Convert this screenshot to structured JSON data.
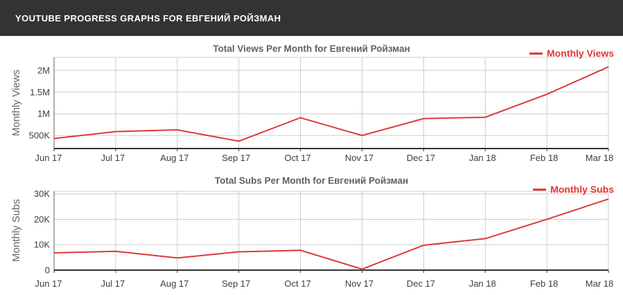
{
  "header": {
    "title": "YOUTUBE PROGRESS GRAPHS FOR ЕВГЕНИЙ РОЙЗМАН"
  },
  "colors": {
    "background": "#ffffff",
    "header_bg": "#333333",
    "header_text": "#ffffff",
    "accent_red": "#df3838",
    "grid": "#cccccc",
    "axis_line": "#333333",
    "y_axis_line": "#616161",
    "tick_text": "#3d3d3d",
    "title_text": "#616161",
    "ylabel_text": "#666666"
  },
  "chart_data": [
    {
      "type": "line",
      "title": "Total Views Per Month for Евгений Ройзман",
      "legend": "Monthly Views",
      "legend_position": "top-right",
      "grid": true,
      "xlabel": "",
      "ylabel": "Monthly Views",
      "categories": [
        "Jun 17",
        "Jul 17",
        "Aug 17",
        "Sep 17",
        "Oct 17",
        "Nov 17",
        "Dec 17",
        "Jan 18",
        "Feb 18",
        "Mar 18"
      ],
      "values": [
        430000,
        590000,
        630000,
        370000,
        910000,
        500000,
        890000,
        920000,
        1450000,
        2080000
      ],
      "ylim": [
        200000,
        2300000
      ],
      "yticks": [
        {
          "value": 500000,
          "label": "500K"
        },
        {
          "value": 1000000,
          "label": "1M"
        },
        {
          "value": 1500000,
          "label": "1.5M"
        },
        {
          "value": 2000000,
          "label": "2M"
        }
      ],
      "line_color": "#df3838"
    },
    {
      "type": "line",
      "title": "Total Subs Per Month for Евгений Ройзман",
      "legend": "Monthly Subs",
      "legend_position": "top-right",
      "grid": true,
      "xlabel": "",
      "ylabel": "Monthly Subs",
      "categories": [
        "Jun 17",
        "Jul 17",
        "Aug 17",
        "Sep 17",
        "Oct 17",
        "Nov 17",
        "Dec 17",
        "Jan 18",
        "Feb 18",
        "Mar 18"
      ],
      "values": [
        6800,
        7400,
        4800,
        7200,
        7800,
        400,
        9800,
        12400,
        20000,
        28000
      ],
      "ylim": [
        0,
        31000
      ],
      "yticks": [
        {
          "value": 0,
          "label": "0"
        },
        {
          "value": 10000,
          "label": "10K"
        },
        {
          "value": 20000,
          "label": "20K"
        },
        {
          "value": 30000,
          "label": "30K"
        }
      ],
      "line_color": "#df3838"
    }
  ]
}
